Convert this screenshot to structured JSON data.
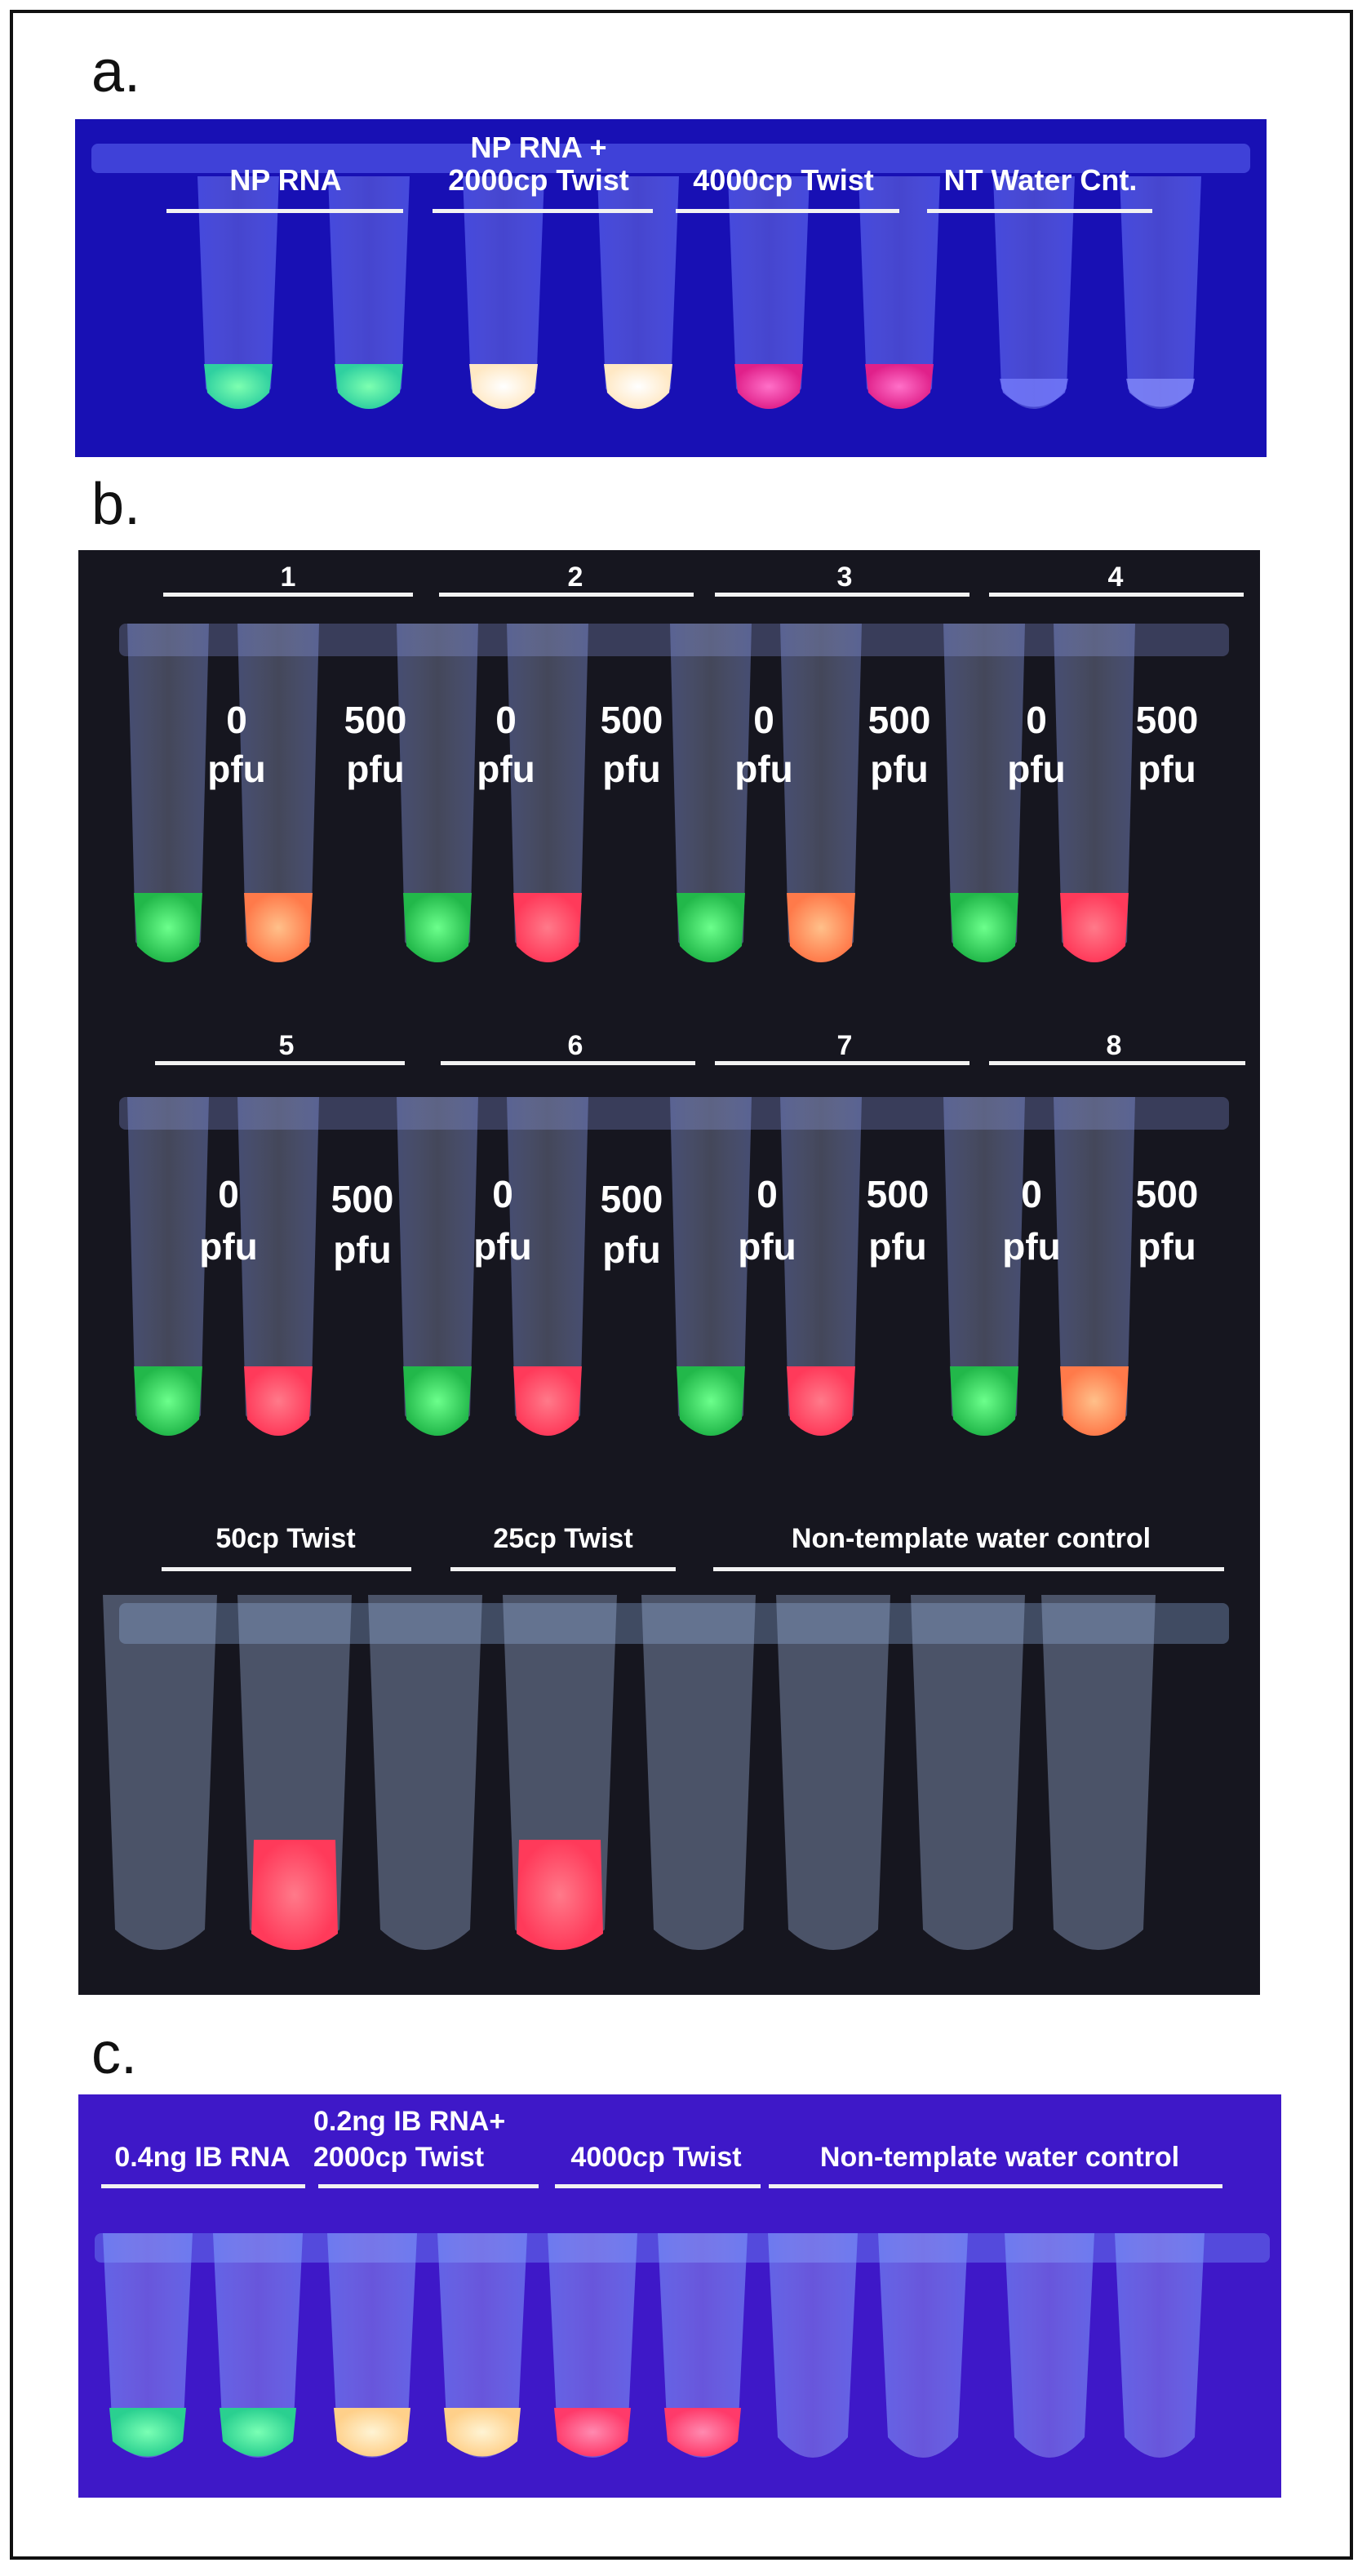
{
  "panels": {
    "a": {
      "letter": "a.",
      "groups": [
        {
          "label": "NP RNA"
        },
        {
          "label_line1": "NP RNA  +",
          "label_line2": "2000cp Twist"
        },
        {
          "label": "4000cp Twist"
        },
        {
          "label": "NT Water Cnt."
        }
      ]
    },
    "b": {
      "letter": "b.",
      "row1": {
        "group_numbers": [
          "1",
          "2",
          "3",
          "4"
        ]
      },
      "row2": {
        "group_numbers": [
          "5",
          "6",
          "7",
          "8"
        ]
      },
      "tube_labels": {
        "low_value": "0",
        "high_value": "500",
        "unit": "pfu"
      },
      "row3": {
        "groups": [
          "50cp Twist",
          "25cp Twist",
          "Non-template water control"
        ]
      }
    },
    "c": {
      "letter": "c.",
      "groups": [
        {
          "label": "0.4ng IB RNA"
        },
        {
          "label_line1": "0.2ng IB RNA+",
          "label_line2": "2000cp  Twist"
        },
        {
          "label": "4000cp Twist"
        },
        {
          "label": "Non-template water control"
        }
      ]
    }
  },
  "colors": {
    "panel_a_bg": "#1a10b8",
    "panel_b_bg": "#14141f",
    "panel_c_bg": "#3a14c8",
    "positive_green": "#3de07a",
    "negative_red": "#ff4a64",
    "orange": "#ff9a5a",
    "pink": "#ff3aa0",
    "pale_yellow": "#fff0c8"
  }
}
